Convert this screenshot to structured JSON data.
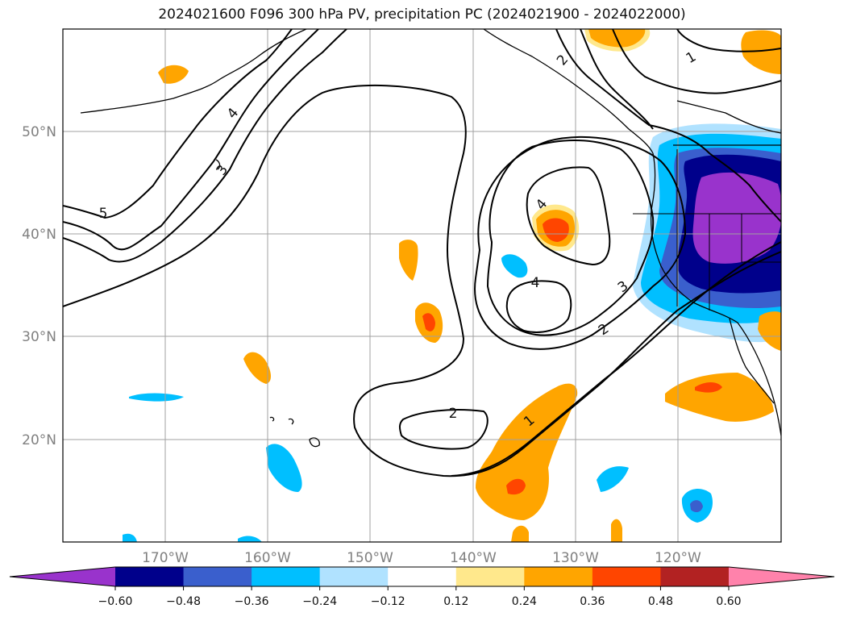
{
  "title": "2024021600 F096 300 hPa PV, precipitation PC (2024021900 - 2024022000)",
  "lat_labels": [
    "50°N",
    "40°N",
    "30°N",
    "20°N"
  ],
  "lon_labels": [
    "170°W",
    "160°W",
    "150°W",
    "140°W",
    "130°W",
    "120°W"
  ],
  "contour_labels": [
    "5",
    "4",
    "3",
    "4",
    "3",
    "2",
    "4",
    "2",
    "1",
    "1",
    "2"
  ],
  "colorbar": {
    "ticks": [
      "−0.60",
      "−0.48",
      "−0.36",
      "−0.24",
      "−0.12",
      "0.12",
      "0.24",
      "0.36",
      "0.48",
      "0.60"
    ],
    "colors": [
      "#9933cc",
      "#00008b",
      "#3a5fcd",
      "#00bfff",
      "#b0e2ff",
      "#ffffff",
      "#ffe88c",
      "#ffa500",
      "#ff4500",
      "#b22222",
      "#ff82ab"
    ]
  }
}
